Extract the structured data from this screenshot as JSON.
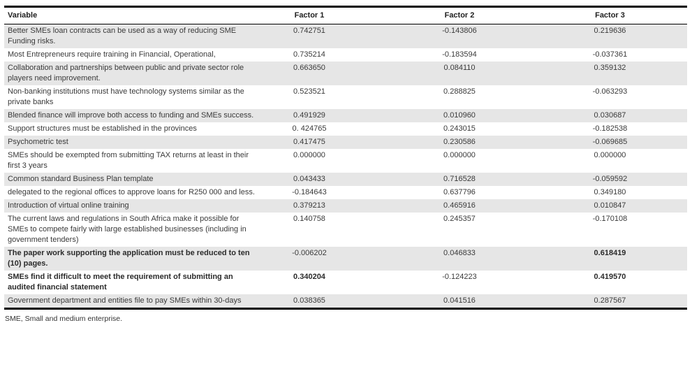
{
  "table": {
    "columns": [
      "Variable",
      "Factor 1",
      "Factor 2",
      "Factor 3"
    ],
    "rows": [
      {
        "variable": "Better SMEs loan contracts can be used as a way of reducing SME Funding risks.",
        "values": [
          "0.742751",
          "-0.143806",
          "0.219636"
        ],
        "bold_variable": false,
        "bold_values": [
          false,
          false,
          false
        ]
      },
      {
        "variable": "Most Entrepreneurs require training in Financial, Operational,",
        "values": [
          "0.735214",
          "-0.183594",
          "-0.037361"
        ],
        "bold_variable": false,
        "bold_values": [
          false,
          false,
          false
        ]
      },
      {
        "variable": "Collaboration and partnerships between public and private sector role players need improvement.",
        "values": [
          "0.663650",
          "0.084110",
          "0.359132"
        ],
        "bold_variable": false,
        "bold_values": [
          false,
          false,
          false
        ]
      },
      {
        "variable": "Non-banking institutions must have technology systems similar as the private banks",
        "values": [
          "0.523521",
          "0.288825",
          "-0.063293"
        ],
        "bold_variable": false,
        "bold_values": [
          false,
          false,
          false
        ]
      },
      {
        "variable": "Blended finance will improve both access to funding and SMEs success.",
        "values": [
          "0.491929",
          "0.010960",
          "0.030687"
        ],
        "bold_variable": false,
        "bold_values": [
          false,
          false,
          false
        ]
      },
      {
        "variable": "Support structures must be established in the provinces",
        "values": [
          "0. 424765",
          "0.243015",
          "-0.182538"
        ],
        "bold_variable": false,
        "bold_values": [
          false,
          false,
          false
        ]
      },
      {
        "variable": "Psychometric test",
        "values": [
          "0.417475",
          "0.230586",
          "-0.069685"
        ],
        "bold_variable": false,
        "bold_values": [
          false,
          false,
          false
        ]
      },
      {
        "variable": "SMEs should be exempted from submitting TAX returns at least in their first 3 years",
        "values": [
          "0.000000",
          "0.000000",
          "0.000000"
        ],
        "bold_variable": false,
        "bold_values": [
          false,
          false,
          false
        ]
      },
      {
        "variable": "Common standard Business Plan template",
        "values": [
          "0.043433",
          "0.716528",
          "-0.059592"
        ],
        "bold_variable": false,
        "bold_values": [
          false,
          false,
          false
        ]
      },
      {
        "variable": "delegated to the regional offices to approve loans for R250 000 and less.",
        "values": [
          "-0.184643",
          "0.637796",
          "0.349180"
        ],
        "bold_variable": false,
        "bold_values": [
          false,
          false,
          false
        ]
      },
      {
        "variable": "Introduction of virtual online training",
        "values": [
          "0.379213",
          "0.465916",
          "0.010847"
        ],
        "bold_variable": false,
        "bold_values": [
          false,
          false,
          false
        ]
      },
      {
        "variable": "The current laws and regulations in South Africa make it possible for SMEs to compete fairly with large established businesses (including in government tenders)",
        "values": [
          "0.140758",
          "0.245357",
          "-0.170108"
        ],
        "bold_variable": false,
        "bold_values": [
          false,
          false,
          false
        ]
      },
      {
        "variable": "The paper work supporting the application must be reduced to ten (10) pages.",
        "values": [
          "-0.006202",
          "0.046833",
          "0.618419"
        ],
        "bold_variable": true,
        "bold_values": [
          false,
          false,
          true
        ]
      },
      {
        "variable": "SMEs find it difficult to meet the requirement of submitting an audited financial statement",
        "values": [
          "0.340204",
          "-0.124223",
          "0.419570"
        ],
        "bold_variable": true,
        "bold_values": [
          true,
          false,
          true
        ]
      },
      {
        "variable": "Government department and entities file to pay SMEs within 30-days",
        "values": [
          "0.038365",
          "0.041516",
          "0.287567"
        ],
        "bold_variable": false,
        "bold_values": [
          false,
          false,
          false
        ]
      }
    ],
    "footnote": "SME, Small and medium enterprise."
  },
  "colors": {
    "stripe": "#e6e6e6",
    "border": "#000000",
    "text": "#3a3a3a"
  }
}
